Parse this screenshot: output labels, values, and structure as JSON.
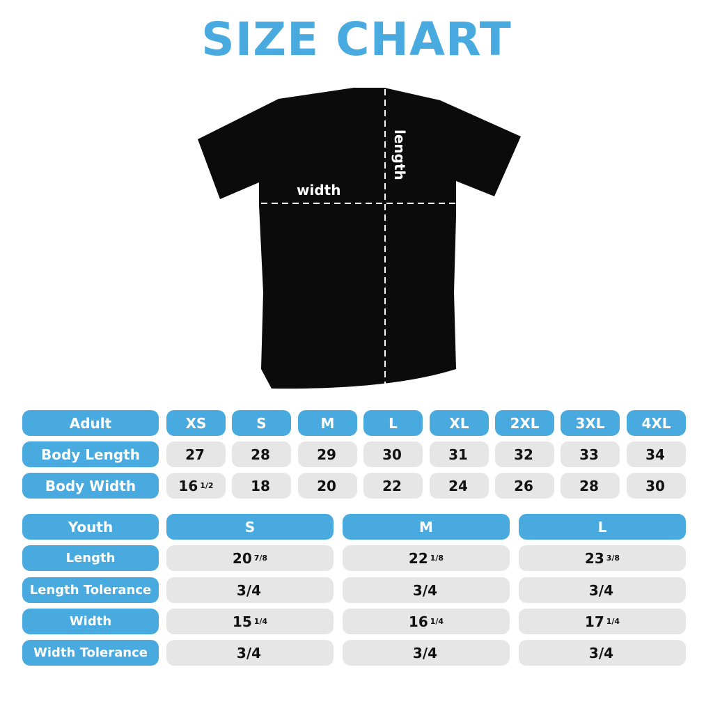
{
  "title": "SIZE CHART",
  "shirt": {
    "width_label": "width",
    "length_label": "length"
  },
  "adult": {
    "header": "Adult",
    "sizes": [
      "XS",
      "S",
      "M",
      "L",
      "XL",
      "2XL",
      "3XL",
      "4XL"
    ],
    "rows": [
      {
        "label": "Body Length",
        "values": [
          [
            "27",
            ""
          ],
          [
            "28",
            ""
          ],
          [
            "29",
            ""
          ],
          [
            "30",
            ""
          ],
          [
            "31",
            ""
          ],
          [
            "32",
            ""
          ],
          [
            "33",
            ""
          ],
          [
            "34",
            ""
          ]
        ]
      },
      {
        "label": "Body Width",
        "values": [
          [
            "16",
            "1/2"
          ],
          [
            "18",
            ""
          ],
          [
            "20",
            ""
          ],
          [
            "22",
            ""
          ],
          [
            "24",
            ""
          ],
          [
            "26",
            ""
          ],
          [
            "28",
            ""
          ],
          [
            "30",
            ""
          ]
        ]
      }
    ]
  },
  "youth": {
    "header": "Youth",
    "sizes": [
      "S",
      "M",
      "L"
    ],
    "rows": [
      {
        "label": "Length",
        "values": [
          [
            "20",
            "7/8"
          ],
          [
            "22",
            "1/8"
          ],
          [
            "23",
            "3/8"
          ]
        ]
      },
      {
        "label": "Length Tolerance",
        "values": [
          [
            "3/4",
            ""
          ],
          [
            "3/4",
            ""
          ],
          [
            "3/4",
            ""
          ]
        ]
      },
      {
        "label": "Width",
        "values": [
          [
            "15",
            "1/4"
          ],
          [
            "16",
            "1/4"
          ],
          [
            "17",
            "1/4"
          ]
        ]
      },
      {
        "label": "Width Tolerance",
        "values": [
          [
            "3/4",
            ""
          ],
          [
            "3/4",
            ""
          ],
          [
            "3/4",
            ""
          ]
        ]
      }
    ]
  },
  "colors": {
    "accent": "#48aadf",
    "cell": "#e6e6e7"
  }
}
